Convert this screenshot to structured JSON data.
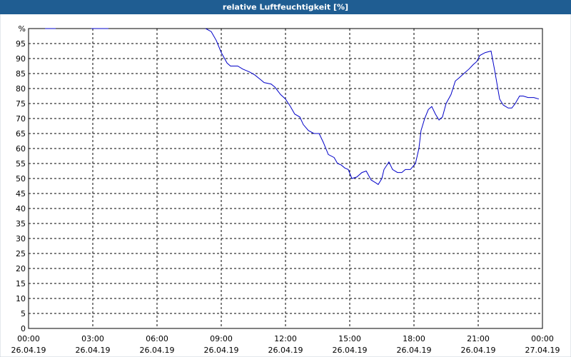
{
  "chart_data": {
    "type": "line",
    "title": "relative Luftfeuchtigkeit [%]",
    "color": "#0000c8",
    "grid": true,
    "xlim": [
      0,
      24
    ],
    "ylim": [
      0,
      100
    ],
    "xticks": [
      {
        "value": 0,
        "label": "00:00",
        "date": "26.04.19"
      },
      {
        "value": 3,
        "label": "03:00",
        "date": "26.04.19"
      },
      {
        "value": 6,
        "label": "06:00",
        "date": "26.04.19"
      },
      {
        "value": 9,
        "label": "09:00",
        "date": "26.04.19"
      },
      {
        "value": 12,
        "label": "12:00",
        "date": "26.04.19"
      },
      {
        "value": 15,
        "label": "15:00",
        "date": "26.04.19"
      },
      {
        "value": 18,
        "label": "18:00",
        "date": "26.04.19"
      },
      {
        "value": 21,
        "label": "21:00",
        "date": "26.04.19"
      },
      {
        "value": 24,
        "label": "00:00",
        "date": "27.04.19"
      }
    ],
    "yticks": [
      0,
      5,
      10,
      15,
      20,
      25,
      30,
      35,
      40,
      45,
      50,
      55,
      60,
      65,
      70,
      75,
      80,
      85,
      90,
      95,
      {
        "value": 100,
        "label": "%"
      }
    ],
    "x": [
      0.77,
      1.27,
      null,
      2.93,
      3.73,
      null,
      8.27,
      8.53,
      8.77,
      9.0,
      9.27,
      9.43,
      9.77,
      10.0,
      10.33,
      10.57,
      10.83,
      11.0,
      11.33,
      11.5,
      11.77,
      12.0,
      12.23,
      12.43,
      12.67,
      12.83,
      13.07,
      13.33,
      13.57,
      13.77,
      14.0,
      14.27,
      14.43,
      14.6,
      14.77,
      14.93,
      15.1,
      15.33,
      15.57,
      15.77,
      16.0,
      16.23,
      16.33,
      16.5,
      16.6,
      16.83,
      17.0,
      17.23,
      17.43,
      17.6,
      17.83,
      18.07,
      18.23,
      18.33,
      18.5,
      18.67,
      18.83,
      19.0,
      19.17,
      19.33,
      19.5,
      19.73,
      19.93,
      20.1,
      20.33,
      20.57,
      20.77,
      20.93,
      21.07,
      21.33,
      21.6,
      21.77,
      22.0,
      22.17,
      22.4,
      22.57,
      22.73,
      22.93,
      23.1,
      23.33,
      23.6,
      23.83
    ],
    "values": [
      100,
      100,
      null,
      100,
      100,
      null,
      100,
      99,
      96,
      92,
      88.5,
      87.5,
      87.5,
      86.5,
      85.5,
      84.5,
      83,
      82,
      81.5,
      80.5,
      78,
      76.5,
      74,
      71.5,
      70.5,
      68,
      66,
      65,
      65,
      62,
      58,
      57,
      55,
      54.5,
      53.5,
      53,
      50,
      50.5,
      52,
      52.5,
      49.5,
      48.5,
      48,
      50,
      53,
      55.5,
      53,
      52,
      52,
      53,
      53,
      55,
      60,
      66,
      70,
      73,
      74,
      71.5,
      69.5,
      70.5,
      75,
      78,
      82.5,
      83.5,
      85,
      86.5,
      88,
      89,
      91,
      92,
      92.5,
      86,
      76.5,
      74.5,
      73.5,
      73.5,
      75,
      77.5,
      77.5,
      77,
      77,
      76.5
    ]
  }
}
